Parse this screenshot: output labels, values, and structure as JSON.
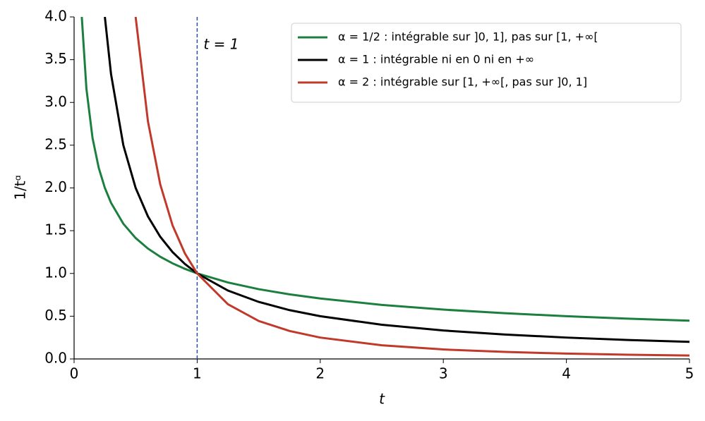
{
  "chart_data": {
    "type": "line",
    "x_label": "t",
    "y_label": "1/tᵅ",
    "x": [
      0.0625,
      0.1,
      0.15,
      0.2,
      0.25,
      0.3,
      0.4,
      0.5,
      0.6,
      0.7,
      0.8,
      0.9,
      1,
      1.25,
      1.5,
      1.75,
      2,
      2.5,
      3,
      3.5,
      4,
      4.5,
      5
    ],
    "series": [
      {
        "name": "α = 1/2 : intégrable sur ]0, 1], pas sur [1, +∞[",
        "color": "#1b7f3e",
        "values": [
          4,
          3.162,
          2.582,
          2.236,
          2,
          1.826,
          1.581,
          1.414,
          1.291,
          1.195,
          1.118,
          1.054,
          1,
          0.894,
          0.816,
          0.756,
          0.707,
          0.632,
          0.577,
          0.535,
          0.5,
          0.471,
          0.447
        ]
      },
      {
        "name": "α = 1 : intégrable ni en 0 ni en +∞",
        "color": "#000000",
        "values": [
          null,
          null,
          null,
          null,
          4,
          3.333,
          2.5,
          2,
          1.667,
          1.429,
          1.25,
          1.111,
          1,
          0.8,
          0.667,
          0.571,
          0.5,
          0.4,
          0.333,
          0.286,
          0.25,
          0.222,
          0.2
        ]
      },
      {
        "name": "α = 2 : intégrable sur [1, +∞[, pas sur ]0, 1]",
        "color": "#c0392b",
        "values": [
          null,
          null,
          null,
          null,
          null,
          null,
          null,
          4,
          2.778,
          2.041,
          1.5625,
          1.235,
          1,
          0.64,
          0.444,
          0.327,
          0.25,
          0.16,
          0.111,
          0.082,
          0.0625,
          0.049,
          0.04
        ]
      }
    ],
    "xlim": [
      0,
      5
    ],
    "xticks": [
      0,
      1,
      2,
      3,
      4,
      5
    ],
    "ylim": [
      0,
      4
    ],
    "yticks": [
      {
        "value": 0,
        "label": "0.0"
      },
      0.5,
      {
        "value": 1,
        "label": "1.0"
      },
      1.5,
      {
        "value": 2,
        "label": "2.0"
      },
      2.5,
      {
        "value": 3,
        "label": "3.0"
      },
      3.5,
      {
        "value": 4,
        "label": "4.0"
      }
    ],
    "vline": {
      "x": 1,
      "label": "t = 1",
      "color": "#2a4cad"
    },
    "legend": "upper right",
    "grid": false
  }
}
